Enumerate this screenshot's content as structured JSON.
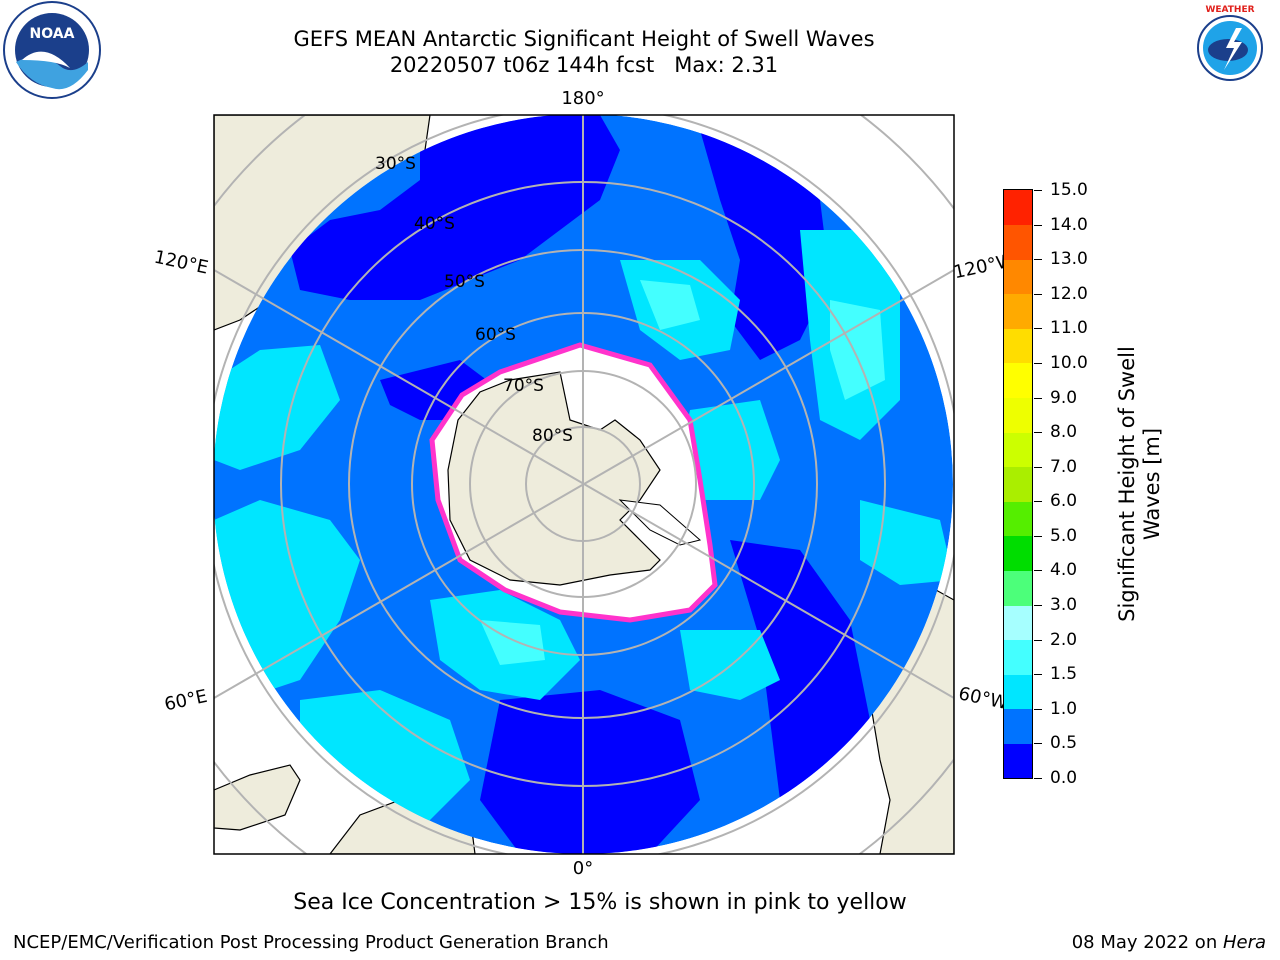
{
  "title": {
    "line1": "GEFS MEAN Antarctic Significant Height of Swell Waves",
    "line2": "20220507 t06z 144h fcst   Max: 2.31"
  },
  "logos": {
    "left": "noaa-logo",
    "right": "nws-logo",
    "left_text": "NOAA",
    "left_ring_text": "NATIONAL OCEANIC AND ATMOSPHERIC ADMINISTRATION · U.S. DEPARTMENT OF COMMERCE",
    "right_ring_text": "NATIONAL WEATHER SERVICE"
  },
  "map": {
    "projection": "south-polar-stereographic",
    "longitude_labels": {
      "top": "180°",
      "bottom": "0°",
      "upper_left": "120°E",
      "upper_right": "120°W",
      "lower_left": "60°E",
      "lower_right": "60°W"
    },
    "latitude_labels": [
      "30°S",
      "40°S",
      "50°S",
      "60°S",
      "70°S",
      "80°S"
    ],
    "colors": {
      "land": "#eeecdc",
      "ice": "#ffffff",
      "ice_edge": "#ff33cc",
      "grid": "#b3b3b3"
    }
  },
  "colorbar": {
    "title_line1": "Significant Height of Swell",
    "title_line2": "Waves [m]",
    "ticks": [
      "0.0",
      "0.5",
      "1.0",
      "1.5",
      "2.0",
      "3.0",
      "4.0",
      "5.0",
      "6.0",
      "7.0",
      "8.0",
      "9.0",
      "10.0",
      "11.0",
      "12.0",
      "13.0",
      "14.0",
      "15.0"
    ],
    "colors": [
      "#0000ff",
      "#0073ff",
      "#00e6ff",
      "#44ffff",
      "#a6ffff",
      "#4cff7a",
      "#00dd00",
      "#55ee00",
      "#aaee00",
      "#ccff00",
      "#eeff00",
      "#ffff00",
      "#ffdd00",
      "#ffaa00",
      "#ff8800",
      "#ff5500",
      "#ff2200"
    ]
  },
  "note": "Sea Ice Concentration > 15% is shown in pink to yellow",
  "footer": {
    "left": "NCEP/EMC/Verification Post Processing Product Generation Branch",
    "right_prefix": "08 May 2022 on ",
    "right_machine": "Hera"
  }
}
